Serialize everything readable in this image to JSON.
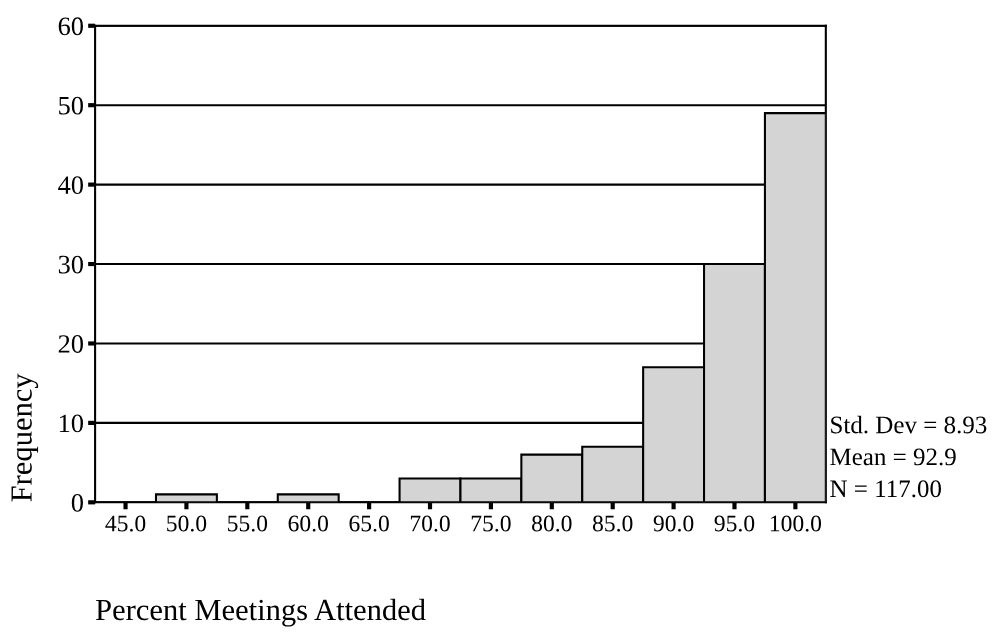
{
  "chart_data": {
    "type": "histogram",
    "xlabel": "Percent Meetings Attended",
    "ylabel": "Frequency",
    "bins": [
      42.5,
      47.5,
      52.5,
      57.5,
      62.5,
      67.5,
      72.5,
      77.5,
      82.5,
      87.5,
      92.5,
      97.5,
      102.5
    ],
    "values": [
      0,
      1,
      0,
      1,
      0,
      3,
      3,
      6,
      7,
      17,
      30,
      49
    ],
    "color": "#d4d4d4",
    "xlim": [
      42.5,
      102.5
    ],
    "xticks": [
      {
        "value": 45,
        "label": "45.0"
      },
      {
        "value": 50,
        "label": "50.0"
      },
      {
        "value": 55,
        "label": "55.0"
      },
      {
        "value": 60,
        "label": "60.0"
      },
      {
        "value": 65,
        "label": "65.0"
      },
      {
        "value": 70,
        "label": "70.0"
      },
      {
        "value": 75,
        "label": "75.0"
      },
      {
        "value": 80,
        "label": "80.0"
      },
      {
        "value": 85,
        "label": "85.0"
      },
      {
        "value": 90,
        "label": "90.0"
      },
      {
        "value": 95,
        "label": "95.0"
      },
      {
        "value": 100,
        "label": "100.0"
      }
    ],
    "ylim": [
      0,
      60
    ],
    "yticks": [
      0,
      10,
      20,
      30,
      40,
      50,
      60
    ],
    "grid": "y",
    "annotations": [
      "Std. Dev = 8.93",
      "Mean = 92.9",
      "N = 117.00"
    ]
  }
}
